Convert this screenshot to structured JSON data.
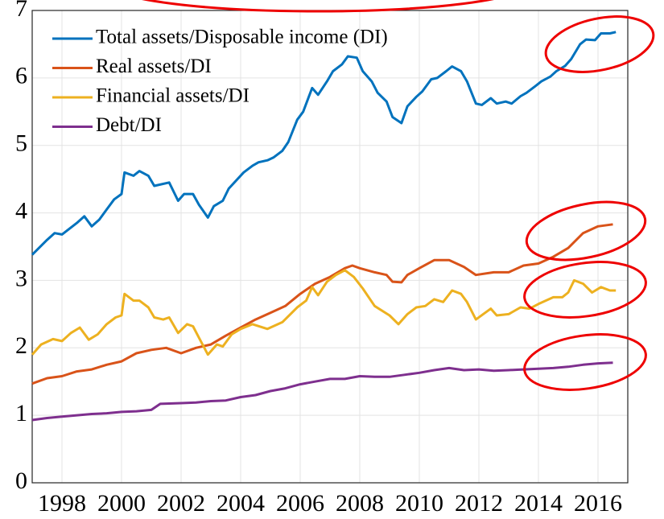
{
  "chart_data": {
    "type": "line",
    "xlim": [
      1997,
      2017
    ],
    "xticks": [
      1998,
      2000,
      2002,
      2004,
      2006,
      2008,
      2010,
      2012,
      2014,
      2016
    ],
    "ylim": [
      0,
      7
    ],
    "yticks": [
      0,
      1,
      2,
      3,
      4,
      5,
      6,
      7
    ],
    "grid": true,
    "legend": "upper left",
    "series": [
      {
        "name": "Total assets/Disposable income (DI)",
        "color": "#0072bd",
        "x": [
          1997.0,
          1997.5,
          1997.75,
          1998.0,
          1998.5,
          1998.75,
          1999.0,
          1999.25,
          1999.5,
          1999.75,
          2000.0,
          2000.1,
          2000.4,
          2000.6,
          2000.9,
          2001.1,
          2001.6,
          2001.9,
          2002.1,
          2002.4,
          2002.6,
          2002.9,
          2003.1,
          2003.4,
          2003.6,
          2004.1,
          2004.4,
          2004.6,
          2004.9,
          2005.1,
          2005.4,
          2005.6,
          2005.9,
          2006.1,
          2006.4,
          2006.6,
          2006.9,
          2007.1,
          2007.4,
          2007.6,
          2007.9,
          2008.1,
          2008.4,
          2008.6,
          2008.9,
          2009.1,
          2009.4,
          2009.6,
          2009.9,
          2010.1,
          2010.4,
          2010.6,
          2010.9,
          2011.1,
          2011.4,
          2011.6,
          2011.9,
          2012.1,
          2012.4,
          2012.6,
          2012.9,
          2013.1,
          2013.4,
          2013.6,
          2013.9,
          2014.1,
          2014.4,
          2014.6,
          2014.9,
          2015.1,
          2015.4,
          2015.6,
          2015.9,
          2016.1,
          2016.4,
          2016.6
        ],
        "values": [
          3.38,
          3.6,
          3.7,
          3.68,
          3.85,
          3.95,
          3.8,
          3.9,
          4.05,
          4.2,
          4.28,
          4.6,
          4.55,
          4.62,
          4.55,
          4.4,
          4.45,
          4.18,
          4.28,
          4.28,
          4.12,
          3.93,
          4.1,
          4.18,
          4.36,
          4.6,
          4.7,
          4.75,
          4.78,
          4.82,
          4.92,
          5.05,
          5.38,
          5.5,
          5.85,
          5.75,
          5.95,
          6.1,
          6.2,
          6.32,
          6.3,
          6.1,
          5.95,
          5.78,
          5.65,
          5.42,
          5.33,
          5.58,
          5.72,
          5.8,
          5.98,
          6.0,
          6.1,
          6.17,
          6.1,
          5.95,
          5.62,
          5.6,
          5.7,
          5.62,
          5.65,
          5.62,
          5.73,
          5.78,
          5.88,
          5.95,
          6.02,
          6.1,
          6.18,
          6.28,
          6.5,
          6.57,
          6.56,
          6.66,
          6.66,
          6.68
        ]
      },
      {
        "name": "Real assets/DI",
        "color": "#d95319",
        "x": [
          1997,
          1997.5,
          1998,
          1998.5,
          1999,
          1999.5,
          2000,
          2000.5,
          2001,
          2001.5,
          2002,
          2002.5,
          2003,
          2003.5,
          2004,
          2004.5,
          2005,
          2005.5,
          2006,
          2006.5,
          2007,
          2007.5,
          2007.75,
          2008,
          2008.5,
          2008.9,
          2009.1,
          2009.4,
          2009.6,
          2010,
          2010.5,
          2011,
          2011.5,
          2011.9,
          2012.5,
          2013,
          2013.5,
          2014,
          2014.5,
          2015,
          2015.5,
          2016,
          2016.5
        ],
        "values": [
          1.47,
          1.55,
          1.58,
          1.65,
          1.68,
          1.75,
          1.8,
          1.92,
          1.97,
          2.0,
          1.92,
          2.0,
          2.05,
          2.18,
          2.3,
          2.42,
          2.52,
          2.62,
          2.8,
          2.95,
          3.05,
          3.18,
          3.22,
          3.18,
          3.12,
          3.08,
          2.98,
          2.97,
          3.08,
          3.18,
          3.3,
          3.3,
          3.2,
          3.08,
          3.12,
          3.12,
          3.22,
          3.25,
          3.35,
          3.48,
          3.7,
          3.8,
          3.83
        ]
      },
      {
        "name": "Financial assets/DI",
        "color": "#edb120",
        "x": [
          1997,
          1997.3,
          1997.7,
          1998,
          1998.3,
          1998.6,
          1998.9,
          1999.2,
          1999.5,
          1999.8,
          2000,
          2000.1,
          2000.4,
          2000.6,
          2000.9,
          2001.1,
          2001.4,
          2001.6,
          2001.9,
          2002.2,
          2002.4,
          2002.6,
          2002.9,
          2003.2,
          2003.4,
          2003.7,
          2004,
          2004.4,
          2004.9,
          2005.4,
          2005.9,
          2006.2,
          2006.4,
          2006.6,
          2006.9,
          2007.2,
          2007.5,
          2007.8,
          2008.1,
          2008.5,
          2009,
          2009.3,
          2009.6,
          2009.9,
          2010.2,
          2010.5,
          2010.8,
          2011.1,
          2011.4,
          2011.6,
          2011.9,
          2012.4,
          2012.6,
          2013,
          2013.4,
          2013.7,
          2014,
          2014.5,
          2014.8,
          2015,
          2015.2,
          2015.5,
          2015.8,
          2016.1,
          2016.4,
          2016.6
        ],
        "values": [
          1.9,
          2.05,
          2.13,
          2.1,
          2.22,
          2.3,
          2.12,
          2.2,
          2.35,
          2.45,
          2.48,
          2.8,
          2.7,
          2.7,
          2.6,
          2.45,
          2.42,
          2.45,
          2.22,
          2.35,
          2.32,
          2.15,
          1.9,
          2.05,
          2.02,
          2.2,
          2.28,
          2.35,
          2.28,
          2.38,
          2.6,
          2.7,
          2.9,
          2.78,
          2.98,
          3.08,
          3.15,
          3.05,
          2.88,
          2.62,
          2.48,
          2.35,
          2.5,
          2.6,
          2.62,
          2.72,
          2.68,
          2.85,
          2.8,
          2.68,
          2.42,
          2.58,
          2.48,
          2.5,
          2.6,
          2.58,
          2.65,
          2.75,
          2.75,
          2.82,
          3.0,
          2.95,
          2.82,
          2.9,
          2.85,
          2.85
        ]
      },
      {
        "name": "Debt/DI",
        "color": "#7e2f8e",
        "x": [
          1997,
          1997.5,
          1998,
          1998.5,
          1999,
          1999.5,
          2000,
          2000.5,
          2001,
          2001.3,
          2002,
          2002.5,
          2003,
          2003.5,
          2004,
          2004.5,
          2005,
          2005.5,
          2006,
          2006.5,
          2007,
          2007.5,
          2008,
          2008.5,
          2009,
          2009.5,
          2010,
          2010.5,
          2011,
          2011.5,
          2012,
          2012.5,
          2013,
          2013.5,
          2014,
          2014.5,
          2015,
          2015.5,
          2016,
          2016.5
        ],
        "values": [
          0.93,
          0.96,
          0.98,
          1.0,
          1.02,
          1.03,
          1.05,
          1.06,
          1.08,
          1.17,
          1.18,
          1.19,
          1.21,
          1.22,
          1.27,
          1.3,
          1.36,
          1.4,
          1.46,
          1.5,
          1.54,
          1.54,
          1.58,
          1.57,
          1.57,
          1.6,
          1.63,
          1.67,
          1.7,
          1.67,
          1.68,
          1.66,
          1.67,
          1.68,
          1.69,
          1.7,
          1.72,
          1.75,
          1.77,
          1.78
        ]
      }
    ]
  }
}
